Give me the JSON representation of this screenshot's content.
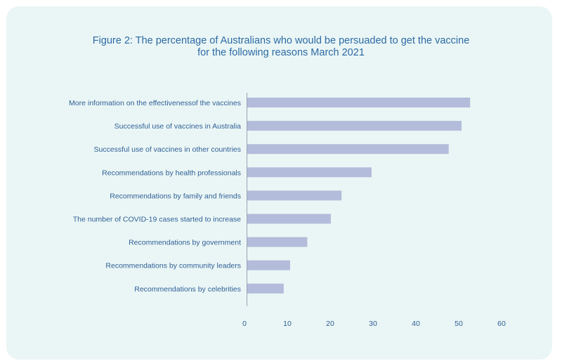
{
  "chart_data": {
    "type": "bar",
    "orientation": "horizontal",
    "title": "Figure 2: The percentage of Australians who would be persuaded to get the vaccine",
    "subtitle": "for the following reasons March 2021",
    "categories": [
      "More information on the effectivenessof the vaccines",
      "Successful use of vaccines in Australia",
      "Successful use of vaccines in other countries",
      "Recommendations by health professionals",
      "Recommendations by family and friends",
      "The number of COVID-19 cases started to increase",
      "Recommendations by government",
      "Recommendations by community leaders",
      "Recommendations by celebrities"
    ],
    "values": [
      52,
      50,
      47,
      29,
      22,
      19.5,
      14,
      10,
      8.5
    ],
    "xlim": [
      0,
      60
    ],
    "xticks": [
      "0",
      "10",
      "20",
      "30",
      "40",
      "50",
      "60"
    ],
    "xlabel": "",
    "ylabel": "",
    "grid": false,
    "colors": {
      "bar": "#b3bcda",
      "background": "#eaf6f5",
      "text": "#2f5f96",
      "axis": "#9aa3b5"
    }
  }
}
